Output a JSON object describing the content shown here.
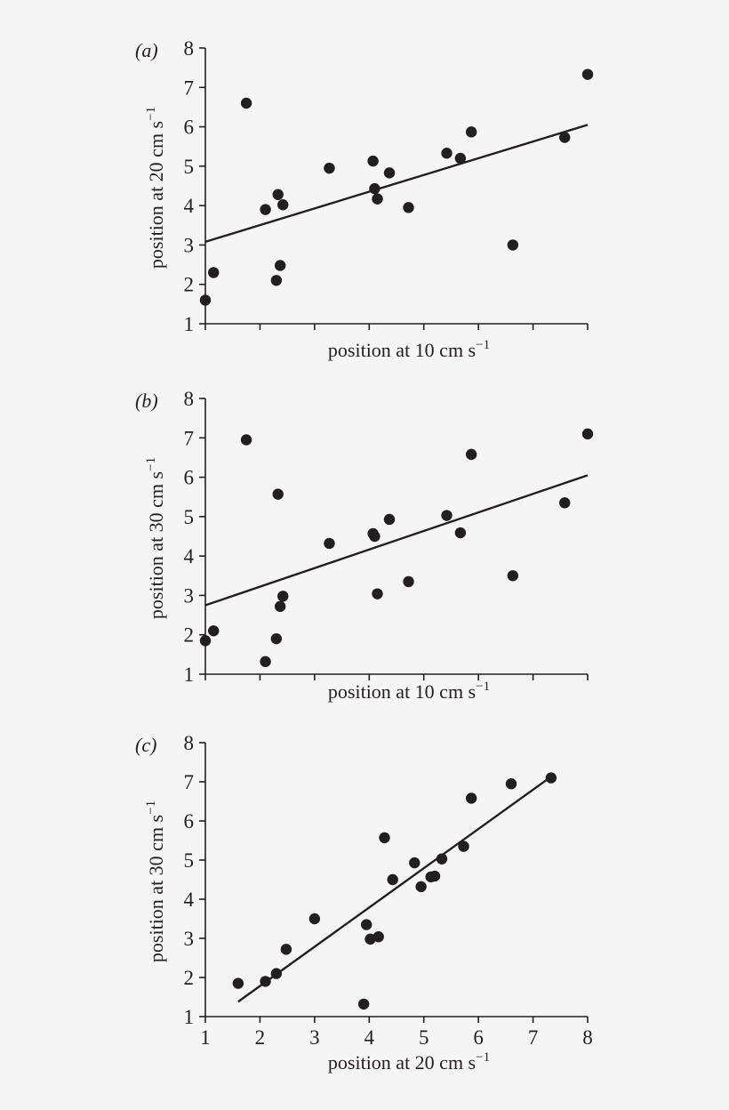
{
  "colors": {
    "ink": "#231f20",
    "background": "#f5f5f5"
  },
  "chart_data": [
    {
      "type": "scatter",
      "panel_label": "(a)",
      "xlabel": "position at 10 cm s",
      "xlabel_sup": "−1",
      "ylabel": "position at 20 cm s",
      "ylabel_sup": "−1",
      "xlim": [
        1,
        8
      ],
      "ylim": [
        1,
        8
      ],
      "x_ticks": [
        1,
        2,
        3,
        4,
        5,
        6,
        7,
        8
      ],
      "x_tick_labels_shown": false,
      "y_ticks": [
        1,
        2,
        3,
        4,
        5,
        6,
        7,
        8
      ],
      "y_tick_labels": [
        "1",
        "2",
        "3",
        "4",
        "5",
        "6",
        "7",
        "8"
      ],
      "grid": false,
      "points": [
        {
          "x": 1.0,
          "y": 1.6
        },
        {
          "x": 1.15,
          "y": 2.3
        },
        {
          "x": 1.75,
          "y": 6.6
        },
        {
          "x": 2.1,
          "y": 3.9
        },
        {
          "x": 2.3,
          "y": 2.1
        },
        {
          "x": 2.33,
          "y": 4.28
        },
        {
          "x": 2.37,
          "y": 2.48
        },
        {
          "x": 2.42,
          "y": 4.02
        },
        {
          "x": 3.27,
          "y": 4.95
        },
        {
          "x": 4.07,
          "y": 5.13
        },
        {
          "x": 4.1,
          "y": 4.43
        },
        {
          "x": 4.15,
          "y": 4.17
        },
        {
          "x": 4.37,
          "y": 4.83
        },
        {
          "x": 4.72,
          "y": 3.95
        },
        {
          "x": 5.42,
          "y": 5.33
        },
        {
          "x": 5.67,
          "y": 5.2
        },
        {
          "x": 5.87,
          "y": 5.87
        },
        {
          "x": 6.63,
          "y": 3.0
        },
        {
          "x": 7.58,
          "y": 5.73
        },
        {
          "x": 8.0,
          "y": 7.33
        }
      ],
      "fit_line": {
        "x": [
          1.0,
          8.0
        ],
        "y": [
          3.08,
          6.05
        ]
      }
    },
    {
      "type": "scatter",
      "panel_label": "(b)",
      "xlabel": "position at 10 cm s",
      "xlabel_sup": "−1",
      "ylabel": "position at 30 cm s",
      "ylabel_sup": "−1",
      "xlim": [
        1,
        8
      ],
      "ylim": [
        1,
        8
      ],
      "x_ticks": [
        1,
        2,
        3,
        4,
        5,
        6,
        7,
        8
      ],
      "x_tick_labels_shown": false,
      "y_ticks": [
        1,
        2,
        3,
        4,
        5,
        6,
        7,
        8
      ],
      "y_tick_labels": [
        "1",
        "2",
        "3",
        "4",
        "5",
        "6",
        "7",
        "8"
      ],
      "grid": false,
      "points": [
        {
          "x": 1.0,
          "y": 1.85
        },
        {
          "x": 1.15,
          "y": 2.1
        },
        {
          "x": 1.75,
          "y": 6.95
        },
        {
          "x": 2.1,
          "y": 1.32
        },
        {
          "x": 2.3,
          "y": 1.9
        },
        {
          "x": 2.33,
          "y": 5.57
        },
        {
          "x": 2.37,
          "y": 2.72
        },
        {
          "x": 2.42,
          "y": 2.98
        },
        {
          "x": 3.27,
          "y": 4.32
        },
        {
          "x": 4.07,
          "y": 4.57
        },
        {
          "x": 4.1,
          "y": 4.5
        },
        {
          "x": 4.15,
          "y": 3.04
        },
        {
          "x": 4.37,
          "y": 4.93
        },
        {
          "x": 4.72,
          "y": 3.35
        },
        {
          "x": 5.42,
          "y": 5.03
        },
        {
          "x": 5.67,
          "y": 4.59
        },
        {
          "x": 5.87,
          "y": 6.58
        },
        {
          "x": 6.63,
          "y": 3.5
        },
        {
          "x": 7.58,
          "y": 5.35
        },
        {
          "x": 8.0,
          "y": 7.1
        }
      ],
      "fit_line": {
        "x": [
          1.0,
          8.0
        ],
        "y": [
          2.75,
          6.05
        ]
      }
    },
    {
      "type": "scatter",
      "panel_label": "(c)",
      "xlabel": "position at 20 cm s",
      "xlabel_sup": "−1",
      "ylabel": "position at 30 cm s",
      "ylabel_sup": "−1",
      "xlim": [
        1,
        8
      ],
      "ylim": [
        1,
        8
      ],
      "x_ticks": [
        1,
        2,
        3,
        4,
        5,
        6,
        7,
        8
      ],
      "x_tick_labels": [
        "1",
        "2",
        "3",
        "4",
        "5",
        "6",
        "7",
        "8"
      ],
      "x_tick_labels_shown": true,
      "y_ticks": [
        1,
        2,
        3,
        4,
        5,
        6,
        7,
        8
      ],
      "y_tick_labels": [
        "1",
        "2",
        "3",
        "4",
        "5",
        "6",
        "7",
        "8"
      ],
      "grid": false,
      "points": [
        {
          "x": 1.6,
          "y": 1.85
        },
        {
          "x": 2.1,
          "y": 1.9
        },
        {
          "x": 2.3,
          "y": 2.1
        },
        {
          "x": 2.48,
          "y": 2.72
        },
        {
          "x": 3.0,
          "y": 3.5
        },
        {
          "x": 3.95,
          "y": 3.35
        },
        {
          "x": 3.9,
          "y": 1.32
        },
        {
          "x": 4.02,
          "y": 2.98
        },
        {
          "x": 4.17,
          "y": 3.04
        },
        {
          "x": 4.28,
          "y": 5.57
        },
        {
          "x": 4.43,
          "y": 4.5
        },
        {
          "x": 4.83,
          "y": 4.93
        },
        {
          "x": 4.95,
          "y": 4.32
        },
        {
          "x": 5.13,
          "y": 4.57
        },
        {
          "x": 5.2,
          "y": 4.59
        },
        {
          "x": 5.33,
          "y": 5.03
        },
        {
          "x": 5.73,
          "y": 5.35
        },
        {
          "x": 5.87,
          "y": 6.58
        },
        {
          "x": 6.6,
          "y": 6.95
        },
        {
          "x": 7.33,
          "y": 7.1
        }
      ],
      "fit_line": {
        "x": [
          1.6,
          7.4
        ],
        "y": [
          1.38,
          7.2
        ]
      }
    }
  ]
}
